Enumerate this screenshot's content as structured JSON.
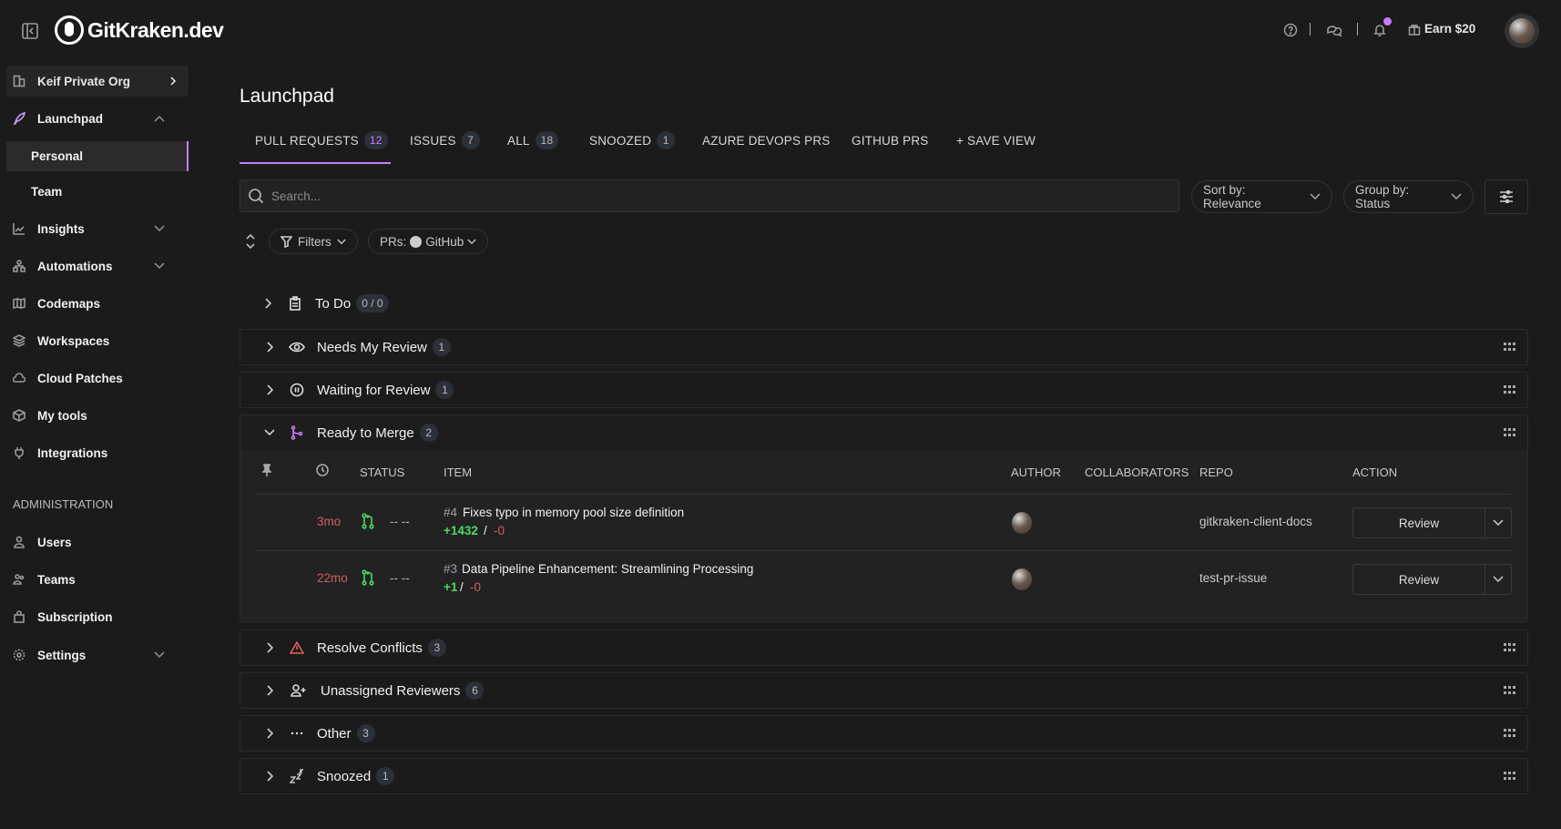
{
  "topbar": {
    "brand": "GitKraken.dev",
    "earn_label": "Earn $20",
    "accent": "#c77dff"
  },
  "sidebar": {
    "org": "Keif Private Org",
    "items": [
      {
        "label": "Launchpad",
        "icon": "rocket-icon"
      },
      {
        "label": "Personal"
      },
      {
        "label": "Team"
      },
      {
        "label": "Insights",
        "icon": "chart-icon"
      },
      {
        "label": "Automations",
        "icon": "automation-icon"
      },
      {
        "label": "Codemaps",
        "icon": "map-icon"
      },
      {
        "label": "Workspaces",
        "icon": "layers-icon"
      },
      {
        "label": "Cloud Patches",
        "icon": "cloud-icon"
      },
      {
        "label": "My tools",
        "icon": "box-icon"
      },
      {
        "label": "Integrations",
        "icon": "plug-icon"
      }
    ],
    "admin_heading": "ADMINISTRATION",
    "admin_items": [
      {
        "label": "Users",
        "icon": "user-icon"
      },
      {
        "label": "Teams",
        "icon": "team-icon"
      },
      {
        "label": "Subscription",
        "icon": "bag-icon"
      },
      {
        "label": "Settings",
        "icon": "gear-icon"
      }
    ]
  },
  "main": {
    "title": "Launchpad",
    "tabs": [
      {
        "label": "PULL REQUESTS",
        "count": "12"
      },
      {
        "label": "ISSUES",
        "count": "7"
      },
      {
        "label": "ALL",
        "count": "18"
      },
      {
        "label": "SNOOZED",
        "count": "1"
      },
      {
        "label": "AZURE DEVOPS PRS"
      },
      {
        "label": "GITHUB PRS"
      },
      {
        "label": "+ SAVE VIEW"
      }
    ],
    "search_placeholder": "Search...",
    "sort_label": "Sort by: Relevance",
    "group_label": "Group by: Status",
    "filters_label": "Filters",
    "prs_label": "PRs:",
    "prs_value": "GitHub",
    "todo": {
      "label": "To Do",
      "count": "0 / 0"
    },
    "groups": [
      {
        "label": "Needs My Review",
        "count": "1"
      },
      {
        "label": "Waiting for Review",
        "count": "1"
      },
      {
        "label": "Ready to Merge",
        "count": "2"
      },
      {
        "label": "Resolve Conflicts",
        "count": "3"
      },
      {
        "label": "Unassigned Reviewers",
        "count": "6"
      },
      {
        "label": "Other",
        "count": "3"
      },
      {
        "label": "Snoozed",
        "count": "1"
      }
    ],
    "table": {
      "headers": [
        "STATUS",
        "ITEM",
        "AUTHOR",
        "COLLABORATORS",
        "REPO",
        "ACTION"
      ],
      "rows": [
        {
          "age": "3mo",
          "checks": "-- --",
          "number": "#4",
          "title": "Fixes typo in memory pool size definition",
          "added": "+1432",
          "sep": "/",
          "removed": "-0",
          "repo": "gitkraken-client-docs",
          "action": "Review"
        },
        {
          "age": "22mo",
          "checks": "-- --",
          "number": "#3",
          "title": "Data Pipeline Enhancement: Streamlining Processing",
          "added": "+1",
          "sep": "/",
          "removed": "-0",
          "repo": "test-pr-issue",
          "action": "Review"
        }
      ]
    }
  }
}
